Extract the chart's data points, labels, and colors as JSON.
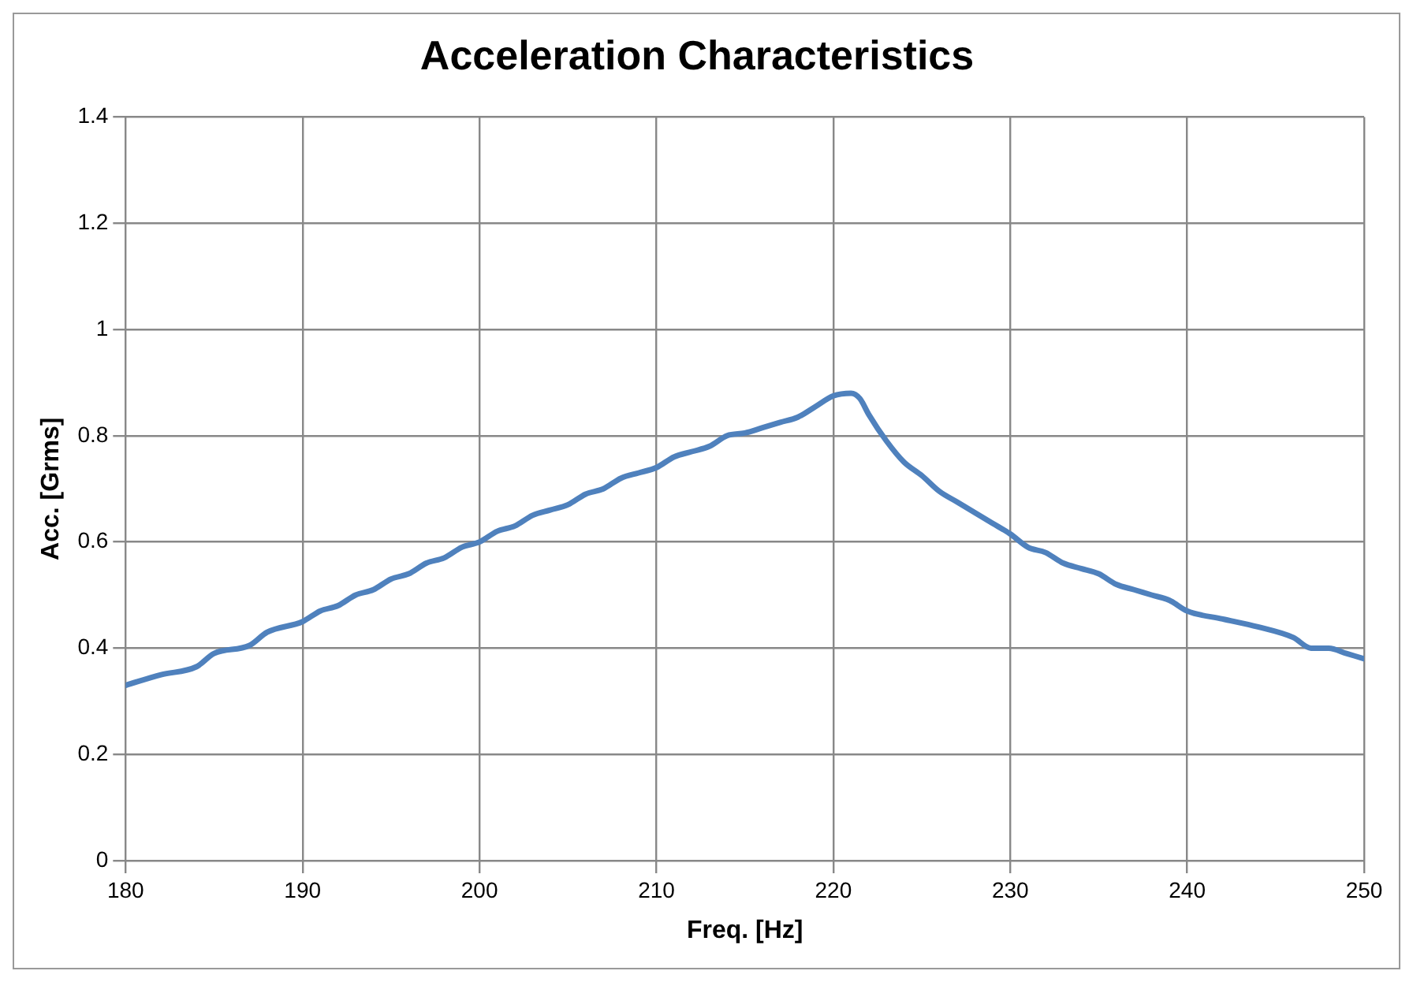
{
  "chart_data": {
    "type": "line",
    "title": "Acceleration Characteristics",
    "xlabel": "Freq. [Hz]",
    "ylabel": "Acc. [Grms]",
    "x": [
      180,
      182,
      184,
      185,
      187,
      188,
      190,
      191,
      192,
      193,
      194,
      195,
      196,
      197,
      198,
      199,
      200,
      201,
      202,
      203,
      204,
      205,
      206,
      207,
      208,
      209,
      210,
      211,
      212,
      213,
      214,
      215,
      216,
      217,
      218,
      219,
      220,
      221,
      221.5,
      222,
      223,
      224,
      225,
      226,
      227,
      228,
      229,
      230,
      231,
      232,
      233,
      234,
      235,
      236,
      237,
      238,
      239,
      240,
      242,
      244,
      246,
      247,
      248,
      249,
      250
    ],
    "series": [
      {
        "color": "#4f81bd",
        "values": [
          0.33,
          0.35,
          0.365,
          0.39,
          0.405,
          0.43,
          0.45,
          0.47,
          0.48,
          0.5,
          0.51,
          0.53,
          0.54,
          0.56,
          0.57,
          0.59,
          0.6,
          0.62,
          0.63,
          0.65,
          0.66,
          0.67,
          0.69,
          0.7,
          0.72,
          0.73,
          0.74,
          0.76,
          0.77,
          0.78,
          0.8,
          0.805,
          0.815,
          0.825,
          0.835,
          0.855,
          0.875,
          0.88,
          0.87,
          0.84,
          0.79,
          0.75,
          0.725,
          0.695,
          0.675,
          0.655,
          0.635,
          0.615,
          0.59,
          0.58,
          0.56,
          0.55,
          0.54,
          0.52,
          0.51,
          0.5,
          0.49,
          0.47,
          0.455,
          0.44,
          0.42,
          0.4,
          0.4,
          0.39,
          0.38
        ]
      }
    ],
    "xlim": [
      180,
      250
    ],
    "xticks": [
      180,
      190,
      200,
      210,
      220,
      230,
      240,
      250
    ],
    "ylim": [
      0,
      1.4
    ],
    "yticks": [
      0,
      0.2,
      0.4,
      0.6,
      0.8,
      1,
      1.2,
      1.4
    ],
    "grid": true,
    "legend": false,
    "marker": "none",
    "line_style": "solid"
  }
}
